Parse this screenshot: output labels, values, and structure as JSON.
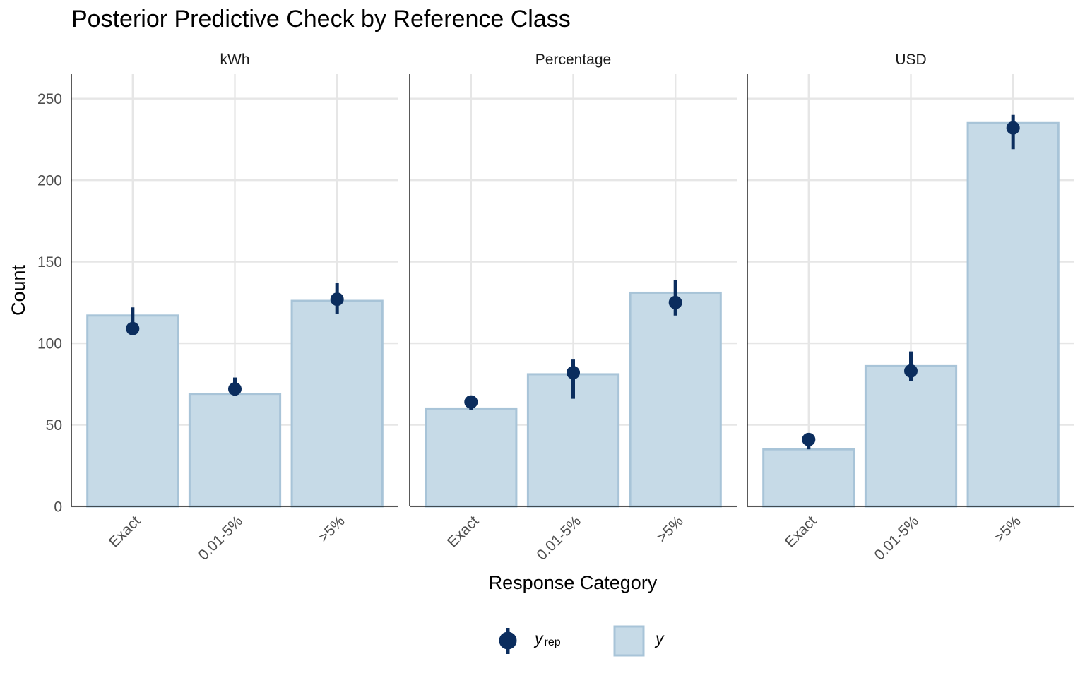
{
  "chart_data": {
    "type": "bar",
    "title": "Posterior Predictive Check by Reference Class",
    "xlabel": "Response Category",
    "ylabel": "Count",
    "ylim": [
      0,
      265
    ],
    "yticks": [
      0,
      50,
      100,
      150,
      200,
      250
    ],
    "categories": [
      "Exact",
      "0.01-5%",
      ">5%"
    ],
    "grid": true,
    "legend_position": "bottom",
    "legend": {
      "yrep_label": "y",
      "yrep_sub": "rep",
      "y_label": "y"
    },
    "colors": {
      "bar_fill": "#c6dae7",
      "bar_stroke": "#a8c4d8",
      "point": "#0b2d5e",
      "grid": "#e6e6e6",
      "axis": "#000000"
    },
    "panels": [
      {
        "name": "kWh",
        "y": [
          117,
          69,
          126
        ],
        "yrep": [
          109,
          72,
          127
        ],
        "yrep_low": [
          107,
          68,
          118
        ],
        "yrep_high": [
          122,
          79,
          137
        ]
      },
      {
        "name": "Percentage",
        "y": [
          60,
          81,
          131
        ],
        "yrep": [
          64,
          82,
          125
        ],
        "yrep_low": [
          59,
          66,
          117
        ],
        "yrep_high": [
          66,
          90,
          139
        ]
      },
      {
        "name": "USD",
        "y": [
          35,
          86,
          235
        ],
        "yrep": [
          41,
          83,
          232
        ],
        "yrep_low": [
          35,
          77,
          219
        ],
        "yrep_high": [
          44,
          95,
          240
        ]
      }
    ]
  }
}
